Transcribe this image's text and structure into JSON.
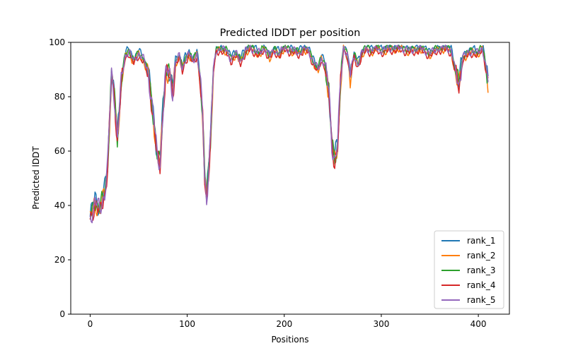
{
  "chart_data": {
    "type": "line",
    "title": "Predicted lDDT per position",
    "xlabel": "Positions",
    "ylabel": "Predicted lDDT",
    "xlim": [
      -20,
      432
    ],
    "ylim": [
      0,
      100
    ],
    "xticks": [
      0,
      100,
      200,
      300,
      400
    ],
    "yticks": [
      0,
      20,
      40,
      60,
      80,
      100
    ],
    "grid": false,
    "legend_position": "lower-right",
    "x_count": 411,
    "series": [
      {
        "name": "rank_1",
        "color": "#1f77b4",
        "offset": 0.8
      },
      {
        "name": "rank_2",
        "color": "#ff7f0e",
        "offset": -0.6
      },
      {
        "name": "rank_3",
        "color": "#2ca02c",
        "offset": 0.3
      },
      {
        "name": "rank_4",
        "color": "#d62728",
        "offset": -1.0
      },
      {
        "name": "rank_5",
        "color": "#9467bd",
        "offset": 0.0
      }
    ],
    "profile": [
      [
        0,
        35
      ],
      [
        5,
        42
      ],
      [
        10,
        38
      ],
      [
        15,
        45
      ],
      [
        18,
        55
      ],
      [
        22,
        88
      ],
      [
        25,
        80
      ],
      [
        28,
        65
      ],
      [
        32,
        85
      ],
      [
        36,
        95
      ],
      [
        40,
        97
      ],
      [
        45,
        93
      ],
      [
        50,
        96
      ],
      [
        55,
        94
      ],
      [
        60,
        88
      ],
      [
        63,
        80
      ],
      [
        66,
        70
      ],
      [
        69,
        58
      ],
      [
        72,
        55
      ],
      [
        75,
        75
      ],
      [
        78,
        90
      ],
      [
        82,
        88
      ],
      [
        85,
        82
      ],
      [
        88,
        93
      ],
      [
        92,
        95
      ],
      [
        95,
        90
      ],
      [
        98,
        94
      ],
      [
        102,
        96
      ],
      [
        106,
        93
      ],
      [
        110,
        96
      ],
      [
        113,
        88
      ],
      [
        116,
        72
      ],
      [
        118,
        50
      ],
      [
        120,
        42
      ],
      [
        124,
        65
      ],
      [
        127,
        90
      ],
      [
        130,
        97
      ],
      [
        135,
        98
      ],
      [
        140,
        97
      ],
      [
        145,
        94
      ],
      [
        150,
        96
      ],
      [
        155,
        93
      ],
      [
        160,
        97
      ],
      [
        165,
        98
      ],
      [
        170,
        97
      ],
      [
        175,
        96
      ],
      [
        180,
        98
      ],
      [
        185,
        95
      ],
      [
        190,
        97
      ],
      [
        195,
        96
      ],
      [
        200,
        98
      ],
      [
        210,
        97
      ],
      [
        215,
        96
      ],
      [
        220,
        98
      ],
      [
        225,
        97
      ],
      [
        230,
        93
      ],
      [
        235,
        90
      ],
      [
        238,
        94
      ],
      [
        242,
        92
      ],
      [
        246,
        82
      ],
      [
        249,
        62
      ],
      [
        252,
        57
      ],
      [
        255,
        63
      ],
      [
        258,
        85
      ],
      [
        261,
        98
      ],
      [
        265,
        96
      ],
      [
        268,
        88
      ],
      [
        272,
        95
      ],
      [
        276,
        92
      ],
      [
        280,
        96
      ],
      [
        285,
        98
      ],
      [
        290,
        97
      ],
      [
        295,
        98
      ],
      [
        300,
        97
      ],
      [
        310,
        98
      ],
      [
        320,
        98
      ],
      [
        330,
        97
      ],
      [
        340,
        98
      ],
      [
        350,
        96
      ],
      [
        360,
        98
      ],
      [
        368,
        98
      ],
      [
        372,
        97
      ],
      [
        376,
        90
      ],
      [
        380,
        84
      ],
      [
        384,
        95
      ],
      [
        390,
        96
      ],
      [
        395,
        97
      ],
      [
        400,
        96
      ],
      [
        404,
        98
      ],
      [
        406,
        95
      ],
      [
        411,
        84
      ]
    ]
  }
}
